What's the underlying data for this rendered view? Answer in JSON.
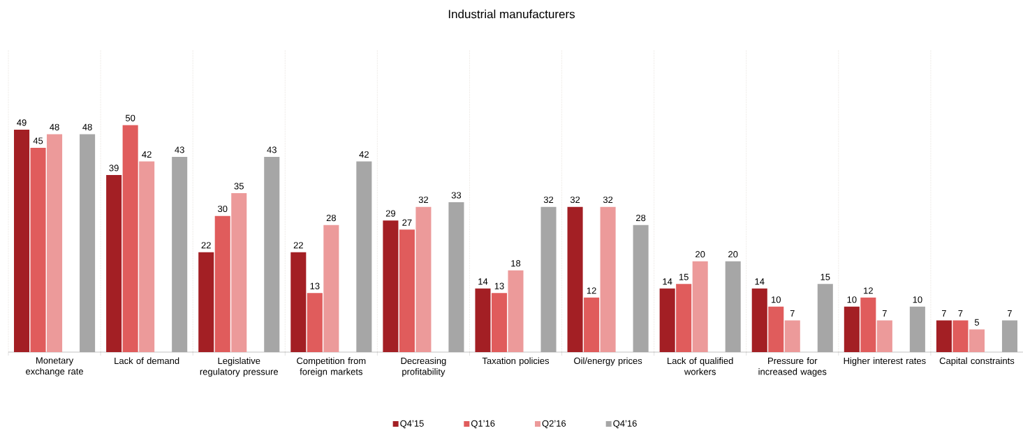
{
  "chart_data": {
    "type": "bar",
    "title": "Industrial manufacturers",
    "categories": [
      "Monetary exchange rate",
      "Lack of demand",
      "Legislative regulatory pressure",
      "Competition from foreign markets",
      "Decreasing profitability",
      "Taxation policies",
      "Oil/energy prices",
      "Lack of qualified workers",
      "Pressure for increased wages",
      "Higher interest rates",
      "Capital constraints"
    ],
    "series": [
      {
        "name": "Q4’15",
        "color": "#a31f24",
        "values": [
          49,
          39,
          22,
          22,
          29,
          14,
          32,
          14,
          14,
          10,
          7
        ]
      },
      {
        "name": "Q1’16",
        "color": "#e05c5c",
        "values": [
          45,
          50,
          30,
          13,
          27,
          13,
          12,
          15,
          10,
          12,
          7
        ]
      },
      {
        "name": "Q2’16",
        "color": "#ec9a9a",
        "values": [
          48,
          42,
          35,
          28,
          32,
          18,
          32,
          20,
          7,
          7,
          5
        ]
      },
      {
        "name": "Q4’16",
        "color": "#a6a6a6",
        "values": [
          48,
          43,
          43,
          42,
          33,
          32,
          28,
          20,
          15,
          10,
          7
        ]
      }
    ],
    "data_labels": true,
    "grid": "x",
    "legend": "bottom"
  }
}
